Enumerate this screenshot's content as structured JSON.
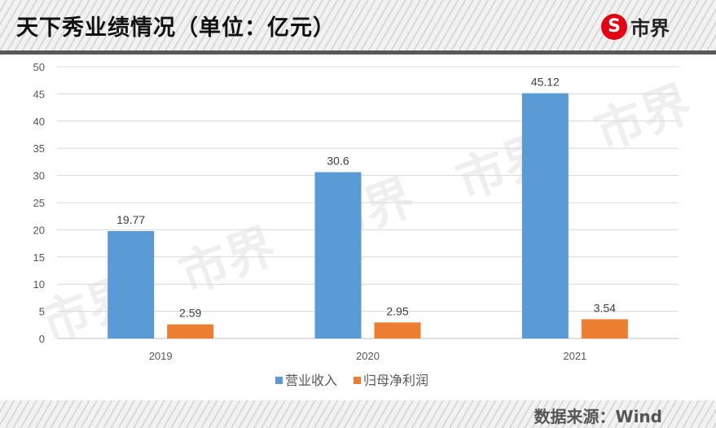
{
  "header": {
    "title": "天下秀业绩情况（单位：亿元）",
    "logo_text": "市界"
  },
  "footer": {
    "source": "数据来源：Wind"
  },
  "watermark": "市界",
  "colors": {
    "营业收入": "#5b9bd5",
    "归母净利润": "#ed7d31"
  },
  "chart_data": {
    "type": "bar",
    "title": "天下秀业绩情况（单位：亿元）",
    "categories": [
      "2019",
      "2020",
      "2021"
    ],
    "series": [
      {
        "name": "营业收入",
        "values": [
          19.77,
          30.6,
          45.12
        ],
        "labels": [
          "19.77",
          "30.6",
          "45.12"
        ]
      },
      {
        "name": "归母净利润",
        "values": [
          2.59,
          2.95,
          3.54
        ],
        "labels": [
          "2.59",
          "2.95",
          "3.54"
        ]
      }
    ],
    "ylim": [
      0,
      50
    ],
    "yticks": [
      "0",
      "5",
      "10",
      "15",
      "20",
      "25",
      "30",
      "35",
      "40",
      "45",
      "50"
    ],
    "grid": true,
    "legend": "bottom"
  }
}
